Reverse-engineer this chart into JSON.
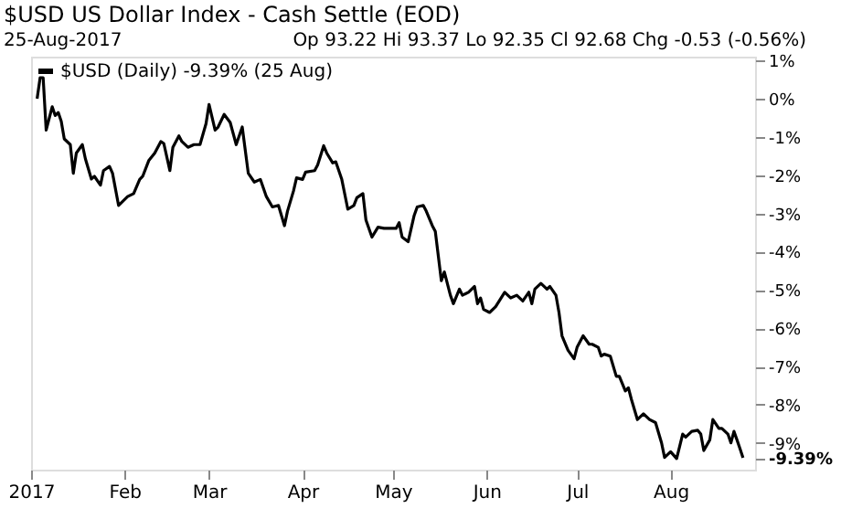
{
  "chart_data": {
    "type": "line",
    "title": "$USD US Dollar Index - Cash Settle (EOD)",
    "subtitle": "25-Aug-2017",
    "annotations": [
      "Op 93.22 Hi 93.37 Lo 92.35 Cl 92.68 Chg -0.53 (-0.56%)"
    ],
    "series": [
      {
        "name": "$USD (Daily) -9.39% (25 Aug)",
        "color": "#000000",
        "x": [
          "2017-01-03",
          "2017-01-04",
          "2017-01-05",
          "2017-01-06",
          "2017-01-08",
          "2017-01-09",
          "2017-01-10",
          "2017-01-11",
          "2017-01-12",
          "2017-01-14",
          "2017-01-15",
          "2017-01-16",
          "2017-01-18",
          "2017-01-19",
          "2017-01-21",
          "2017-01-22",
          "2017-01-24",
          "2017-01-25",
          "2017-01-27",
          "2017-01-28",
          "2017-01-30",
          "2017-02-02",
          "2017-02-04",
          "2017-02-06",
          "2017-02-07",
          "2017-02-09",
          "2017-02-11",
          "2017-02-13",
          "2017-02-14",
          "2017-02-16",
          "2017-02-17",
          "2017-02-19",
          "2017-02-20",
          "2017-02-22",
          "2017-02-24",
          "2017-02-26",
          "2017-02-28",
          "2017-03-01",
          "2017-03-03",
          "2017-03-04",
          "2017-03-06",
          "2017-03-08",
          "2017-03-10",
          "2017-03-12",
          "2017-03-14",
          "2017-03-16",
          "2017-03-18",
          "2017-03-20",
          "2017-03-22",
          "2017-03-24",
          "2017-03-26",
          "2017-03-27",
          "2017-03-29",
          "2017-03-30",
          "2017-04-01",
          "2017-04-02",
          "2017-04-05",
          "2017-04-06",
          "2017-04-08",
          "2017-04-09",
          "2017-04-11",
          "2017-04-12",
          "2017-04-14",
          "2017-04-16",
          "2017-04-18",
          "2017-04-19",
          "2017-04-21",
          "2017-04-22",
          "2017-04-24",
          "2017-04-26",
          "2017-04-28",
          "2017-04-30",
          "2017-05-02",
          "2017-05-03",
          "2017-05-04",
          "2017-05-06",
          "2017-05-08",
          "2017-05-09",
          "2017-05-11",
          "2017-05-12",
          "2017-05-14",
          "2017-05-15",
          "2017-05-17",
          "2017-05-18",
          "2017-05-20",
          "2017-05-21",
          "2017-05-23",
          "2017-05-24",
          "2017-05-26",
          "2017-05-28",
          "2017-05-29",
          "2017-05-30",
          "2017-05-31",
          "2017-06-02",
          "2017-06-04",
          "2017-06-07",
          "2017-06-09",
          "2017-06-11",
          "2017-06-13",
          "2017-06-15",
          "2017-06-16",
          "2017-06-17",
          "2017-06-19",
          "2017-06-21",
          "2017-06-22",
          "2017-06-24",
          "2017-06-25",
          "2017-06-26",
          "2017-06-28",
          "2017-06-30",
          "2017-07-01",
          "2017-07-03",
          "2017-07-05",
          "2017-07-06",
          "2017-07-08",
          "2017-07-09",
          "2017-07-10",
          "2017-07-12",
          "2017-07-14",
          "2017-07-15",
          "2017-07-17",
          "2017-07-18",
          "2017-07-19",
          "2017-07-21",
          "2017-07-23",
          "2017-07-25",
          "2017-07-27",
          "2017-07-29",
          "2017-07-30",
          "2017-08-01",
          "2017-08-03",
          "2017-08-05",
          "2017-08-06",
          "2017-08-08",
          "2017-08-10",
          "2017-08-11",
          "2017-08-12",
          "2017-08-14",
          "2017-08-15",
          "2017-08-17",
          "2017-08-18",
          "2017-08-20",
          "2017-08-21",
          "2017-08-22",
          "2017-08-23",
          "2017-08-24",
          "2017-08-25"
        ],
        "values": [
          0.0,
          0.55,
          0.55,
          -0.82,
          -0.21,
          -0.44,
          -0.36,
          -0.59,
          -1.05,
          -1.2,
          -1.95,
          -1.42,
          -1.2,
          -1.57,
          -2.1,
          -2.03,
          -2.26,
          -1.88,
          -1.77,
          -1.95,
          -2.79,
          -2.56,
          -2.48,
          -2.11,
          -2.03,
          -1.62,
          -1.42,
          -1.12,
          -1.17,
          -1.88,
          -1.27,
          -0.97,
          -1.12,
          -1.27,
          -1.2,
          -1.2,
          -0.65,
          -0.15,
          -0.82,
          -0.74,
          -0.41,
          -0.62,
          -1.2,
          -0.74,
          -1.95,
          -2.18,
          -2.11,
          -2.56,
          -2.83,
          -2.79,
          -3.32,
          -2.94,
          -2.41,
          -2.07,
          -2.11,
          -1.92,
          -1.88,
          -1.73,
          -1.23,
          -1.42,
          -1.68,
          -1.65,
          -2.11,
          -2.89,
          -2.79,
          -2.59,
          -2.48,
          -3.17,
          -3.62,
          -3.36,
          -3.39,
          -3.39,
          -3.39,
          -3.24,
          -3.62,
          -3.74,
          -3.05,
          -2.83,
          -2.79,
          -2.94,
          -3.32,
          -3.47,
          -4.76,
          -4.53,
          -5.14,
          -5.36,
          -4.98,
          -5.14,
          -5.06,
          -4.91,
          -5.36,
          -5.21,
          -5.51,
          -5.59,
          -5.44,
          -5.06,
          -5.21,
          -5.14,
          -5.29,
          -5.06,
          -5.36,
          -4.98,
          -4.83,
          -4.98,
          -4.91,
          -5.14,
          -5.59,
          -6.2,
          -6.58,
          -6.8,
          -6.5,
          -6.2,
          -6.42,
          -6.42,
          -6.5,
          -6.73,
          -6.68,
          -6.73,
          -7.26,
          -7.26,
          -7.64,
          -7.56,
          -7.86,
          -8.39,
          -8.24,
          -8.39,
          -8.47,
          -9.0,
          -9.38,
          -9.23,
          -9.41,
          -8.77,
          -8.85,
          -8.7,
          -8.67,
          -8.77,
          -9.2,
          -8.92,
          -8.39,
          -8.62,
          -8.62,
          -8.77,
          -9.0,
          -8.7,
          -8.92,
          -9.15,
          -9.39
        ]
      }
    ],
    "xlim": [
      "2017-01-01",
      "2017-08-29"
    ],
    "xticks": [
      {
        "value": "2017-01-01",
        "label": "2017"
      },
      {
        "value": "2017-02-01",
        "label": "Feb"
      },
      {
        "value": "2017-03-01",
        "label": "Mar"
      },
      {
        "value": "2017-04-01",
        "label": "Apr"
      },
      {
        "value": "2017-05-01",
        "label": "May"
      },
      {
        "value": "2017-06-01",
        "label": "Jun"
      },
      {
        "value": "2017-07-01",
        "label": "Jul"
      },
      {
        "value": "2017-08-01",
        "label": "Aug"
      }
    ],
    "ylim": [
      -9.7,
      1.1
    ],
    "yticks": [
      {
        "value": 1,
        "label": "1%"
      },
      {
        "value": 0,
        "label": "0%"
      },
      {
        "value": -1,
        "label": "-1%"
      },
      {
        "value": -2,
        "label": "-2%"
      },
      {
        "value": -3,
        "label": "-3%"
      },
      {
        "value": -4,
        "label": "-4%"
      },
      {
        "value": -5,
        "label": "-5%"
      },
      {
        "value": -6,
        "label": "-6%"
      },
      {
        "value": -7,
        "label": "-7%"
      },
      {
        "value": -8,
        "label": "-8%"
      },
      {
        "value": -9,
        "label": "-9%"
      },
      {
        "value": -9.39,
        "label": "-9.39%"
      }
    ],
    "grid": false,
    "legend": "top left",
    "marker": "none",
    "line_style": "solid"
  }
}
